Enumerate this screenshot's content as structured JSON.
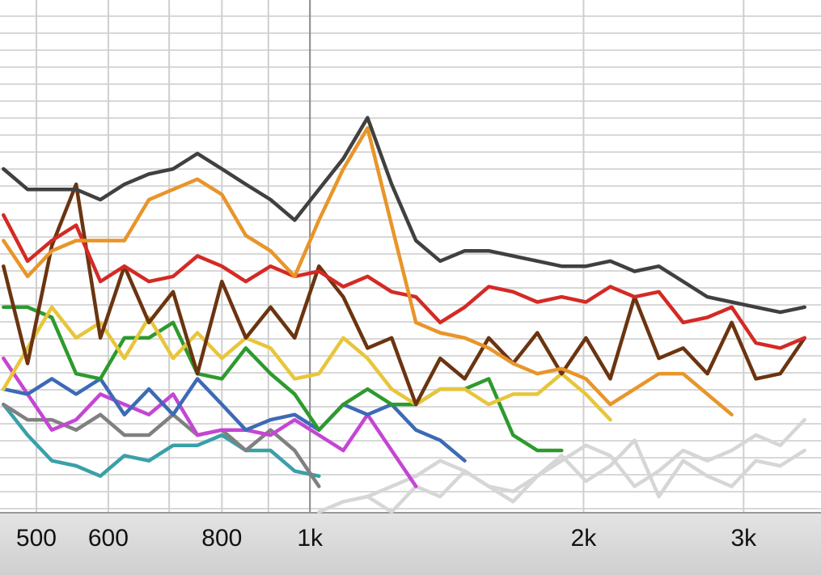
{
  "chart_data": {
    "type": "line",
    "x": [
      460,
      489,
      520,
      553,
      588,
      625,
      665,
      707,
      752,
      800,
      850,
      905,
      962,
      1023,
      1088,
      1157,
      1230,
      1308,
      1391,
      1480,
      1573,
      1673,
      1779,
      1892,
      2012,
      2140,
      2276,
      2420,
      2574,
      2737,
      2911,
      3095,
      3292,
      3501
    ],
    "xscale": "log",
    "xlim": [
      456,
      3650
    ],
    "ylim": [
      0,
      100
    ],
    "xticks": [
      500,
      600,
      800,
      {
        "value": 1000,
        "label": "1k"
      },
      {
        "value": 2000,
        "label": "2k"
      },
      {
        "value": 3000,
        "label": "3k"
      }
    ],
    "xminor": [
      700,
      900
    ],
    "grid": true,
    "series": [
      {
        "color": "#d6d6d6",
        "values": [
          null,
          null,
          null,
          null,
          null,
          null,
          null,
          null,
          null,
          null,
          null,
          null,
          null,
          0,
          2,
          3,
          5,
          7,
          10,
          8,
          5,
          4,
          7,
          10,
          13,
          11,
          5,
          8,
          12,
          10,
          12,
          15,
          13,
          18
        ]
      },
      {
        "color": "#d6d6d6",
        "values": [
          null,
          null,
          null,
          null,
          null,
          null,
          null,
          null,
          null,
          null,
          null,
          null,
          null,
          null,
          null,
          3,
          0,
          5,
          3,
          8,
          5,
          2,
          7,
          11,
          6,
          9,
          14,
          3,
          10,
          7,
          5,
          10,
          9,
          12
        ]
      },
      {
        "color": "#3aa0a8",
        "values": [
          21,
          15,
          10,
          9,
          7,
          11,
          10,
          13,
          13,
          15,
          12,
          12,
          8,
          7,
          null,
          null,
          null,
          null,
          null,
          null,
          null,
          null,
          null,
          null,
          null,
          null,
          null,
          null,
          null,
          null,
          null,
          null,
          null,
          null
        ]
      },
      {
        "color": "#808080",
        "values": [
          21,
          18,
          18,
          16,
          19,
          15,
          15,
          19,
          15,
          16,
          12,
          16,
          12,
          5,
          null,
          null,
          null,
          null,
          null,
          null,
          null,
          null,
          null,
          null,
          null,
          null,
          null,
          null,
          null,
          null,
          null,
          null,
          null,
          null
        ]
      },
      {
        "color": "#c545d4",
        "values": [
          30,
          23,
          16,
          18,
          23,
          21,
          19,
          23,
          15,
          16,
          16,
          15,
          18,
          15,
          12,
          19,
          12,
          5,
          null,
          null,
          null,
          null,
          null,
          null,
          null,
          null,
          null,
          null,
          null,
          null,
          null,
          null,
          null,
          null
        ]
      },
      {
        "color": "#3d6ab5",
        "values": [
          24,
          23,
          26,
          23,
          26,
          19,
          24,
          19,
          26,
          21,
          16,
          18,
          19,
          16,
          21,
          19,
          21,
          16,
          14,
          10,
          null,
          null,
          null,
          null,
          null,
          null,
          null,
          null,
          null,
          null,
          null,
          null,
          null,
          null
        ]
      },
      {
        "color": "#2e9a2e",
        "values": [
          40,
          40,
          38,
          27,
          26,
          34,
          34,
          37,
          27,
          26,
          32,
          27,
          23,
          16,
          21,
          24,
          21,
          21,
          24,
          24,
          26,
          15,
          12,
          12,
          null,
          null,
          null,
          null,
          null,
          null,
          null,
          null,
          null,
          null
        ]
      },
      {
        "color": "#e8c53a",
        "values": [
          24,
          32,
          40,
          34,
          37,
          30,
          38,
          30,
          35,
          30,
          34,
          32,
          26,
          27,
          34,
          30,
          24,
          21,
          24,
          24,
          21,
          23,
          23,
          27,
          23,
          18,
          null,
          null,
          null,
          null,
          null,
          null,
          null,
          null
        ]
      },
      {
        "color": "#6b3410",
        "values": [
          48,
          29,
          52,
          64,
          34,
          48,
          37,
          43,
          27,
          45,
          34,
          40,
          34,
          48,
          42,
          32,
          34,
          21,
          30,
          26,
          34,
          29,
          35,
          27,
          34,
          26,
          42,
          30,
          32,
          27,
          37,
          26,
          27,
          34
        ]
      },
      {
        "color": "#d42a25",
        "values": [
          58,
          49,
          53,
          56,
          45,
          48,
          45,
          46,
          50,
          48,
          45,
          48,
          46,
          47,
          44,
          46,
          43,
          42,
          37,
          40,
          44,
          43,
          41,
          42,
          41,
          44,
          42,
          43,
          37,
          38,
          40,
          33,
          32,
          34
        ]
      },
      {
        "color": "#e8952a",
        "values": [
          53,
          46,
          51,
          53,
          53,
          53,
          61,
          63,
          65,
          62,
          54,
          51,
          46,
          57,
          67,
          75,
          56,
          37,
          35,
          34,
          32,
          29,
          27,
          28,
          26,
          21,
          24,
          27,
          27,
          23,
          19,
          null,
          null,
          null
        ]
      },
      {
        "color": "#404040",
        "values": [
          67,
          63,
          63,
          63,
          61,
          64,
          66,
          67,
          70,
          67,
          64,
          61,
          57,
          63,
          69,
          77,
          64,
          53,
          49,
          51,
          51,
          50,
          49,
          48,
          48,
          49,
          47,
          48,
          45,
          42,
          41,
          40,
          39,
          40
        ]
      }
    ]
  }
}
